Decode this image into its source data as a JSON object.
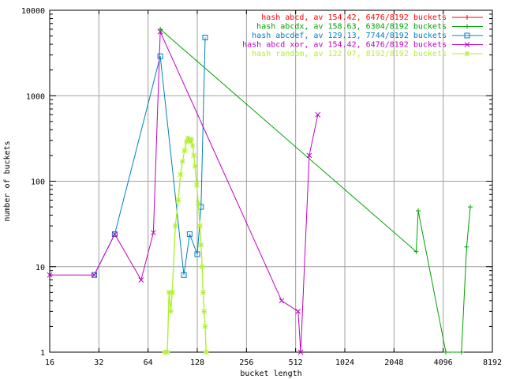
{
  "chart_data": {
    "type": "line",
    "xlabel": "bucket length",
    "ylabel": "number of buckets",
    "x_scale": "log2",
    "y_scale": "log10",
    "xlim": [
      16,
      8192
    ],
    "ylim": [
      1,
      10000
    ],
    "x_ticks": [
      "16",
      "32",
      "64",
      "128",
      "256",
      "512",
      "1024",
      "2048",
      "4096",
      "8192"
    ],
    "y_ticks": [
      "1",
      "10",
      "100",
      "1000",
      "10000"
    ],
    "grid": true,
    "legend_position": "top-right",
    "series": [
      {
        "name": "hash abcd, av 154.42, 6476/8192 buckets",
        "color": "#ff0000",
        "marker": "plus",
        "points": []
      },
      {
        "name": "hash abcdx, av 158.63, 6304/8192 buckets",
        "color": "#00a000",
        "marker": "plus",
        "points": [
          [
            76,
            6000
          ],
          [
            2800,
            15
          ],
          [
            2880,
            45
          ],
          [
            4250,
            1
          ],
          [
            5300,
            1
          ],
          [
            5700,
            17
          ],
          [
            6000,
            50
          ]
        ]
      },
      {
        "name": "hash abcdef, av 129.13, 7744/8192 buckets",
        "color": "#0080c0",
        "marker": "square",
        "points": [
          [
            30,
            8
          ],
          [
            40,
            24
          ],
          [
            76,
            2900
          ],
          [
            106,
            8
          ],
          [
            115,
            24
          ],
          [
            128,
            14
          ],
          [
            135,
            50
          ],
          [
            143,
            4800
          ]
        ]
      },
      {
        "name": "hash abcd xor, av 154.42, 6476/8192 buckets",
        "color": "#c000c0",
        "marker": "x",
        "points": [
          [
            16,
            8
          ],
          [
            30,
            8
          ],
          [
            40,
            24
          ],
          [
            58,
            7
          ],
          [
            69,
            25
          ],
          [
            76,
            5600
          ],
          [
            420,
            4
          ],
          [
            530,
            3
          ],
          [
            550,
            1
          ],
          [
            620,
            200
          ],
          [
            700,
            600
          ]
        ]
      },
      {
        "name": "hash random, av 122.07, 8192/8192 buckets",
        "color": "#b0f030",
        "marker": "star",
        "points": [
          [
            81,
            1
          ],
          [
            84,
            1
          ],
          [
            86,
            5
          ],
          [
            88,
            3
          ],
          [
            90,
            5
          ],
          [
            94,
            30
          ],
          [
            98,
            60
          ],
          [
            101,
            120
          ],
          [
            104,
            170
          ],
          [
            107,
            230
          ],
          [
            110,
            290
          ],
          [
            112,
            320
          ],
          [
            114,
            300
          ],
          [
            116,
            290
          ],
          [
            118,
            310
          ],
          [
            120,
            260
          ],
          [
            122,
            200
          ],
          [
            124,
            150
          ],
          [
            127,
            90
          ],
          [
            130,
            55
          ],
          [
            133,
            30
          ],
          [
            135,
            18
          ],
          [
            137,
            10
          ],
          [
            139,
            5
          ],
          [
            141,
            3
          ],
          [
            143,
            2
          ],
          [
            145,
            1
          ]
        ]
      }
    ]
  }
}
